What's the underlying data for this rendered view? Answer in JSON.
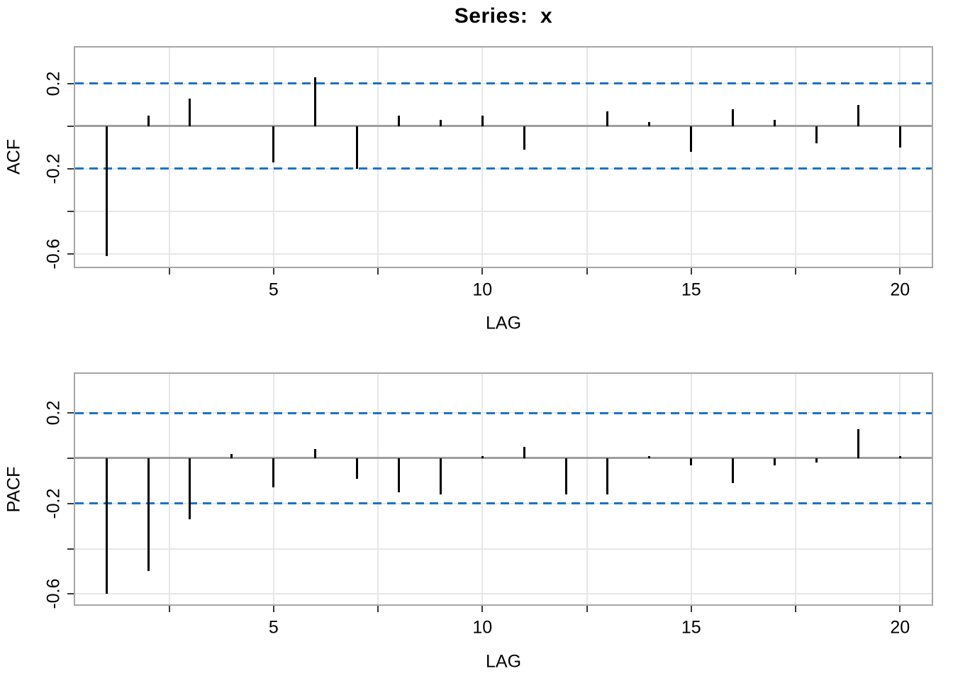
{
  "title": "Series:  x",
  "colors": {
    "band": "#1f72c4",
    "bar": "#000000",
    "grid": "#e7e7e7",
    "border": "#a6a6a6",
    "zero_line": "#9e9e9e",
    "tick": "#3a3a3a",
    "text": "#000000",
    "background": "#ffffff"
  },
  "chart_data": [
    {
      "type": "bar",
      "title": "Series: x",
      "ylabel": "ACF",
      "xlabel": "LAG",
      "x": [
        1,
        2,
        3,
        4,
        5,
        6,
        7,
        8,
        9,
        10,
        11,
        12,
        13,
        14,
        15,
        16,
        17,
        18,
        19,
        20
      ],
      "values": [
        -0.61,
        0.05,
        0.13,
        0.0,
        -0.17,
        0.23,
        -0.2,
        0.05,
        0.03,
        0.05,
        -0.11,
        0.0,
        0.07,
        0.02,
        -0.12,
        0.08,
        0.03,
        -0.08,
        0.1,
        -0.1
      ],
      "ci_bounds": [
        -0.2,
        0.2
      ],
      "ci_line_style": "dashed",
      "xlim": [
        0.25,
        20.76
      ],
      "ylim": [
        -0.661,
        0.369
      ],
      "x_ticks": [
        2.5,
        5,
        7.5,
        10,
        12.5,
        15,
        17.5,
        20
      ],
      "x_tick_labels": [
        {
          "value": 5,
          "label": "5"
        },
        {
          "value": 10,
          "label": "10"
        },
        {
          "value": 15,
          "label": "15"
        },
        {
          "value": 20,
          "label": "20"
        }
      ],
      "y_ticks": [
        0.2,
        0,
        -0.2,
        -0.4,
        -0.6
      ],
      "y_tick_labels": [
        {
          "value": 0.2,
          "label": "0.2"
        },
        {
          "value": -0.2,
          "label": "-0.2"
        },
        {
          "value": -0.6,
          "label": "-0.6"
        }
      ],
      "grid": true,
      "legend": "none"
    },
    {
      "type": "bar",
      "title": "Series: x",
      "ylabel": "PACF",
      "xlabel": "LAG",
      "x": [
        1,
        2,
        3,
        4,
        5,
        6,
        7,
        8,
        9,
        10,
        11,
        12,
        13,
        14,
        15,
        16,
        17,
        18,
        19,
        20
      ],
      "values": [
        -0.6,
        -0.5,
        -0.27,
        0.02,
        -0.13,
        0.04,
        -0.09,
        -0.15,
        -0.16,
        0.01,
        0.05,
        -0.16,
        -0.16,
        0.01,
        -0.03,
        -0.11,
        -0.03,
        -0.02,
        0.13,
        0.01
      ],
      "ci_bounds": [
        -0.2,
        0.2
      ],
      "ci_line_style": "dashed",
      "xlim": [
        0.25,
        20.76
      ],
      "ylim": [
        -0.646,
        0.373
      ],
      "x_ticks": [
        2.5,
        5,
        7.5,
        10,
        12.5,
        15,
        17.5,
        20
      ],
      "x_tick_labels": [
        {
          "value": 5,
          "label": "5"
        },
        {
          "value": 10,
          "label": "10"
        },
        {
          "value": 15,
          "label": "15"
        },
        {
          "value": 20,
          "label": "20"
        }
      ],
      "y_ticks": [
        0.2,
        0,
        -0.2,
        -0.4,
        -0.6
      ],
      "y_tick_labels": [
        {
          "value": 0.2,
          "label": "0.2"
        },
        {
          "value": -0.2,
          "label": "-0.2"
        },
        {
          "value": -0.6,
          "label": "-0.6"
        }
      ],
      "grid": true,
      "legend": "none"
    }
  ]
}
